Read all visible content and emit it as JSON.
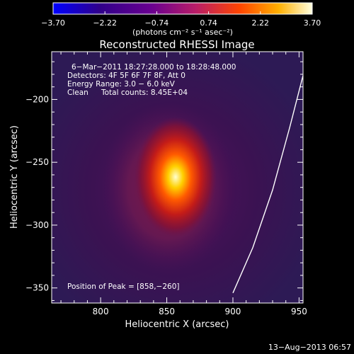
{
  "chart_data": {
    "type": "heatmap",
    "title": "Reconstructed RHESSI Image",
    "xlabel": "Heliocentric X (arcsec)",
    "ylabel": "Heliocentric Y (arcsec)",
    "xlim": [
      763,
      953
    ],
    "ylim": [
      -362,
      -162
    ],
    "x_ticks": [
      800,
      850,
      900,
      950
    ],
    "x_tick_labels": [
      "800",
      "850",
      "900",
      "950"
    ],
    "y_ticks": [
      -200,
      -250,
      -300,
      -350
    ],
    "y_tick_labels": [
      "−200",
      "−250",
      "−300",
      "−350"
    ],
    "colorbar": {
      "range": [
        -3.7,
        3.7
      ],
      "ticks": [
        -3.7,
        -2.22,
        -0.74,
        0.74,
        2.22,
        3.7
      ],
      "tick_labels": [
        "−3.70",
        "−2.22",
        "−0.74",
        "0.74",
        "2.22",
        "3.70"
      ],
      "units": "(photons cm⁻² s⁻¹ asec⁻²)",
      "colormap": [
        "#0000ff",
        "#30008a",
        "#6a0090",
        "#b81d68",
        "#ff4500",
        "#ffb000",
        "#ffffe0"
      ]
    },
    "annotations": {
      "time": "6−Mar−2011 18:27:28.000 to 18:28:48.000",
      "detectors": "Detectors: 4F 5F 6F 7F 8F, Att 0",
      "energy": "Energy Range: 3.0 − 6.0 keV",
      "clean": "Clean",
      "counts": "Total counts: 8.45E+04",
      "peak": "Position of Peak = [858,−260]"
    },
    "peak": {
      "x": 858,
      "y": -260
    },
    "limb_curve": [
      [
        900,
        -354
      ],
      [
        915,
        -318
      ],
      [
        930,
        -272
      ],
      [
        943,
        -222
      ],
      [
        953,
        -181
      ]
    ],
    "footer": "13−Aug−2013 06:57"
  }
}
